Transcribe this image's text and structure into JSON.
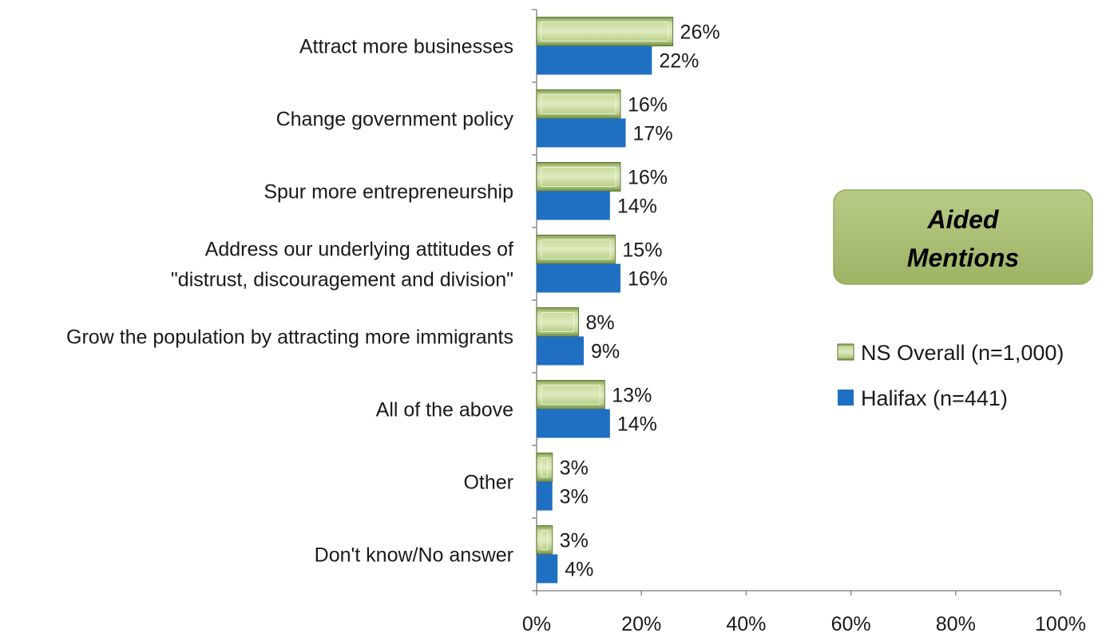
{
  "callout": {
    "line1": "Aided",
    "line2": "Mentions",
    "fill": "#a7bd73",
    "border": "#8aa356"
  },
  "colors": {
    "ns_overall": "#a8c47a",
    "ns_overall_edge": "#5f7a36",
    "halifax": "#1f6fc2",
    "axis": "#8c8c8c"
  },
  "chart_data": {
    "type": "bar",
    "orientation": "horizontal",
    "categories": [
      "Attract more businesses",
      "Change government policy",
      "Spur more entrepreneurship",
      "Address our underlying attitudes of \"distrust, discouragement and division\"",
      "Grow the population by attracting more immigrants",
      "All of the above",
      "Other",
      "Don't know/No answer"
    ],
    "category_lines": [
      [
        "Attract more businesses"
      ],
      [
        "Change government policy"
      ],
      [
        "Spur more entrepreneurship"
      ],
      [
        "Address our underlying attitudes of",
        "\"distrust, discouragement and division\""
      ],
      [
        "Grow the population by attracting more immigrants"
      ],
      [
        "All of the above"
      ],
      [
        "Other"
      ],
      [
        "Don't know/No answer"
      ]
    ],
    "series": [
      {
        "name": "NS Overall (n=1,000)",
        "values": [
          26,
          16,
          16,
          15,
          8,
          13,
          3,
          3
        ],
        "labels": [
          "26%",
          "16%",
          "16%",
          "15%",
          "8%",
          "13%",
          "3%",
          "3%"
        ]
      },
      {
        "name": "Halifax (n=441)",
        "values": [
          22,
          17,
          14,
          16,
          9,
          14,
          3,
          4
        ],
        "labels": [
          "22%",
          "17%",
          "14%",
          "16%",
          "9%",
          "14%",
          "3%",
          "4%"
        ]
      }
    ],
    "xlim": [
      0,
      100
    ],
    "xticks": [
      0,
      20,
      40,
      60,
      80,
      100
    ],
    "xtick_labels": [
      "0%",
      "20%",
      "40%",
      "60%",
      "80%",
      "100%"
    ],
    "legend_position": "right",
    "grid": false
  }
}
